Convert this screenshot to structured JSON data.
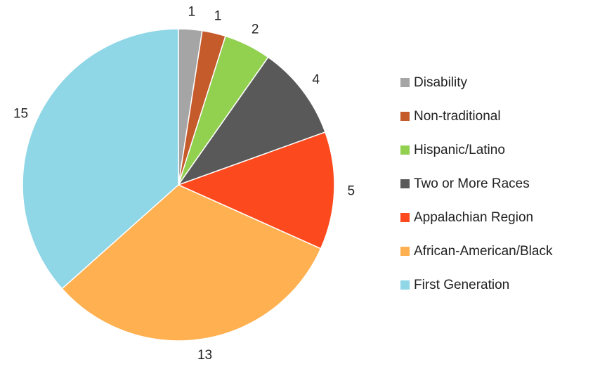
{
  "chart_data": {
    "type": "pie",
    "categories": [
      "Disability",
      "Non-traditional",
      "Hispanic/Latino",
      "Two or More Races",
      "Appalachian Region",
      "African-American/Black",
      "First Generation"
    ],
    "values": [
      1,
      1,
      2,
      4,
      5,
      13,
      15
    ],
    "colors": [
      "#a5a5a5",
      "#c55a2b",
      "#92d050",
      "#595959",
      "#fc4a1e",
      "#ffb050",
      "#8fd6e6"
    ],
    "legend": "right"
  }
}
